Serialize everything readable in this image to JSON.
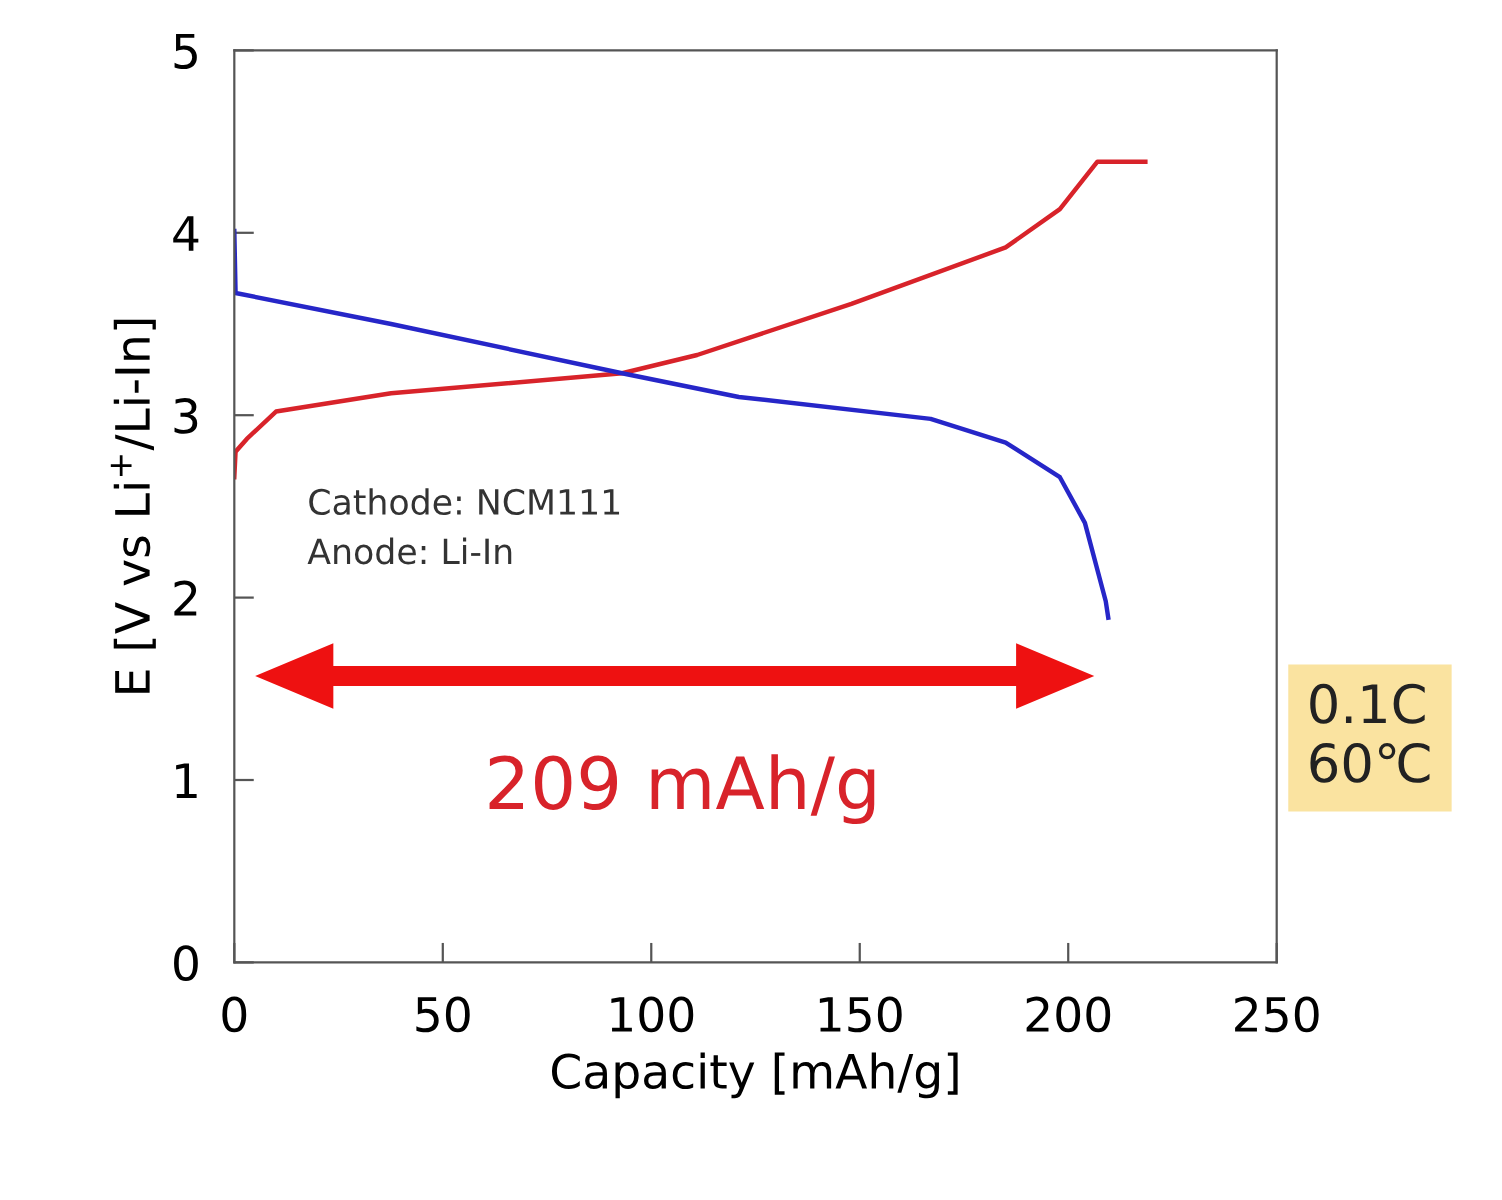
{
  "chart_data": {
    "type": "line",
    "xlabel": "Capacity [mAh/g]",
    "ylabel": "E [V vs Li$^{+}$/Li-In]",
    "xlim": [
      0,
      250
    ],
    "xticks": [
      0,
      50,
      100,
      150,
      200,
      250
    ],
    "ylim": [
      0,
      5
    ],
    "yticks": [
      0,
      1,
      2,
      3,
      4,
      5
    ],
    "grid": false,
    "legend": false,
    "marker": "none",
    "line_style": "solid",
    "series": [
      {
        "color": "#d8232a",
        "x": [
          0,
          0.3,
          3,
          10,
          37.6,
          93,
          111,
          148,
          185,
          198,
          207,
          218.5
        ],
        "values": [
          2.66,
          2.8,
          2.87,
          3.02,
          3.12,
          3.23,
          3.33,
          3.61,
          3.92,
          4.13,
          4.39,
          4.39
        ]
      },
      {
        "color": "#2626c8",
        "x": [
          0,
          0.3,
          37.6,
          93,
          121,
          167,
          185,
          198,
          204,
          209,
          209.6
        ],
        "values": [
          4.01,
          3.67,
          3.5,
          3.23,
          3.1,
          2.98,
          2.85,
          2.66,
          2.41,
          1.98,
          1.89
        ]
      }
    ],
    "annotations": [
      "Cathode: NCM111\nAnode: Li-In",
      "209 mAh/g",
      "0.1C\n60℃"
    ]
  }
}
